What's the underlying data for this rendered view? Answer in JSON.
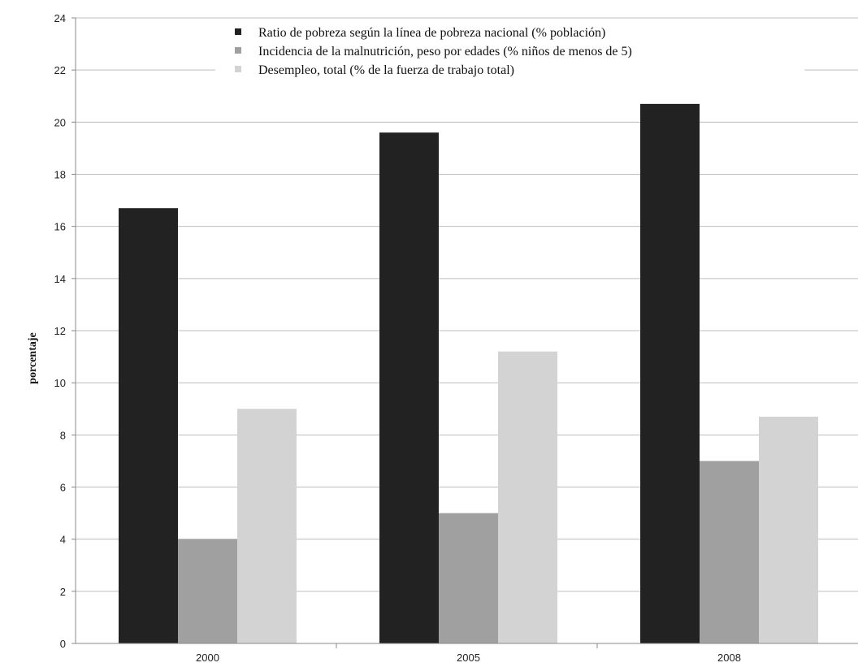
{
  "chart_data": {
    "type": "bar",
    "categories": [
      "2000",
      "2005",
      "2008"
    ],
    "series": [
      {
        "name": "Ratio de pobreza según la línea de pobreza nacional (% población)",
        "color": "#222222",
        "values": [
          16.7,
          19.6,
          20.7
        ]
      },
      {
        "name": "Incidencia de la malnutrición, peso por edades (% niños de menos de 5)",
        "color": "#a0a0a0",
        "values": [
          4.0,
          5.0,
          7.0
        ]
      },
      {
        "name": "Desempleo, total (% de la fuerza de trabajo total)",
        "color": "#d3d3d3",
        "values": [
          9.0,
          11.2,
          8.7
        ]
      }
    ],
    "ylabel": "porcentaje",
    "xlabel": "",
    "ylim": [
      0,
      24
    ],
    "yticks": [
      0,
      2,
      4,
      6,
      8,
      10,
      12,
      14,
      16,
      18,
      20,
      22,
      24
    ],
    "grid": true,
    "legend": "top-center"
  }
}
